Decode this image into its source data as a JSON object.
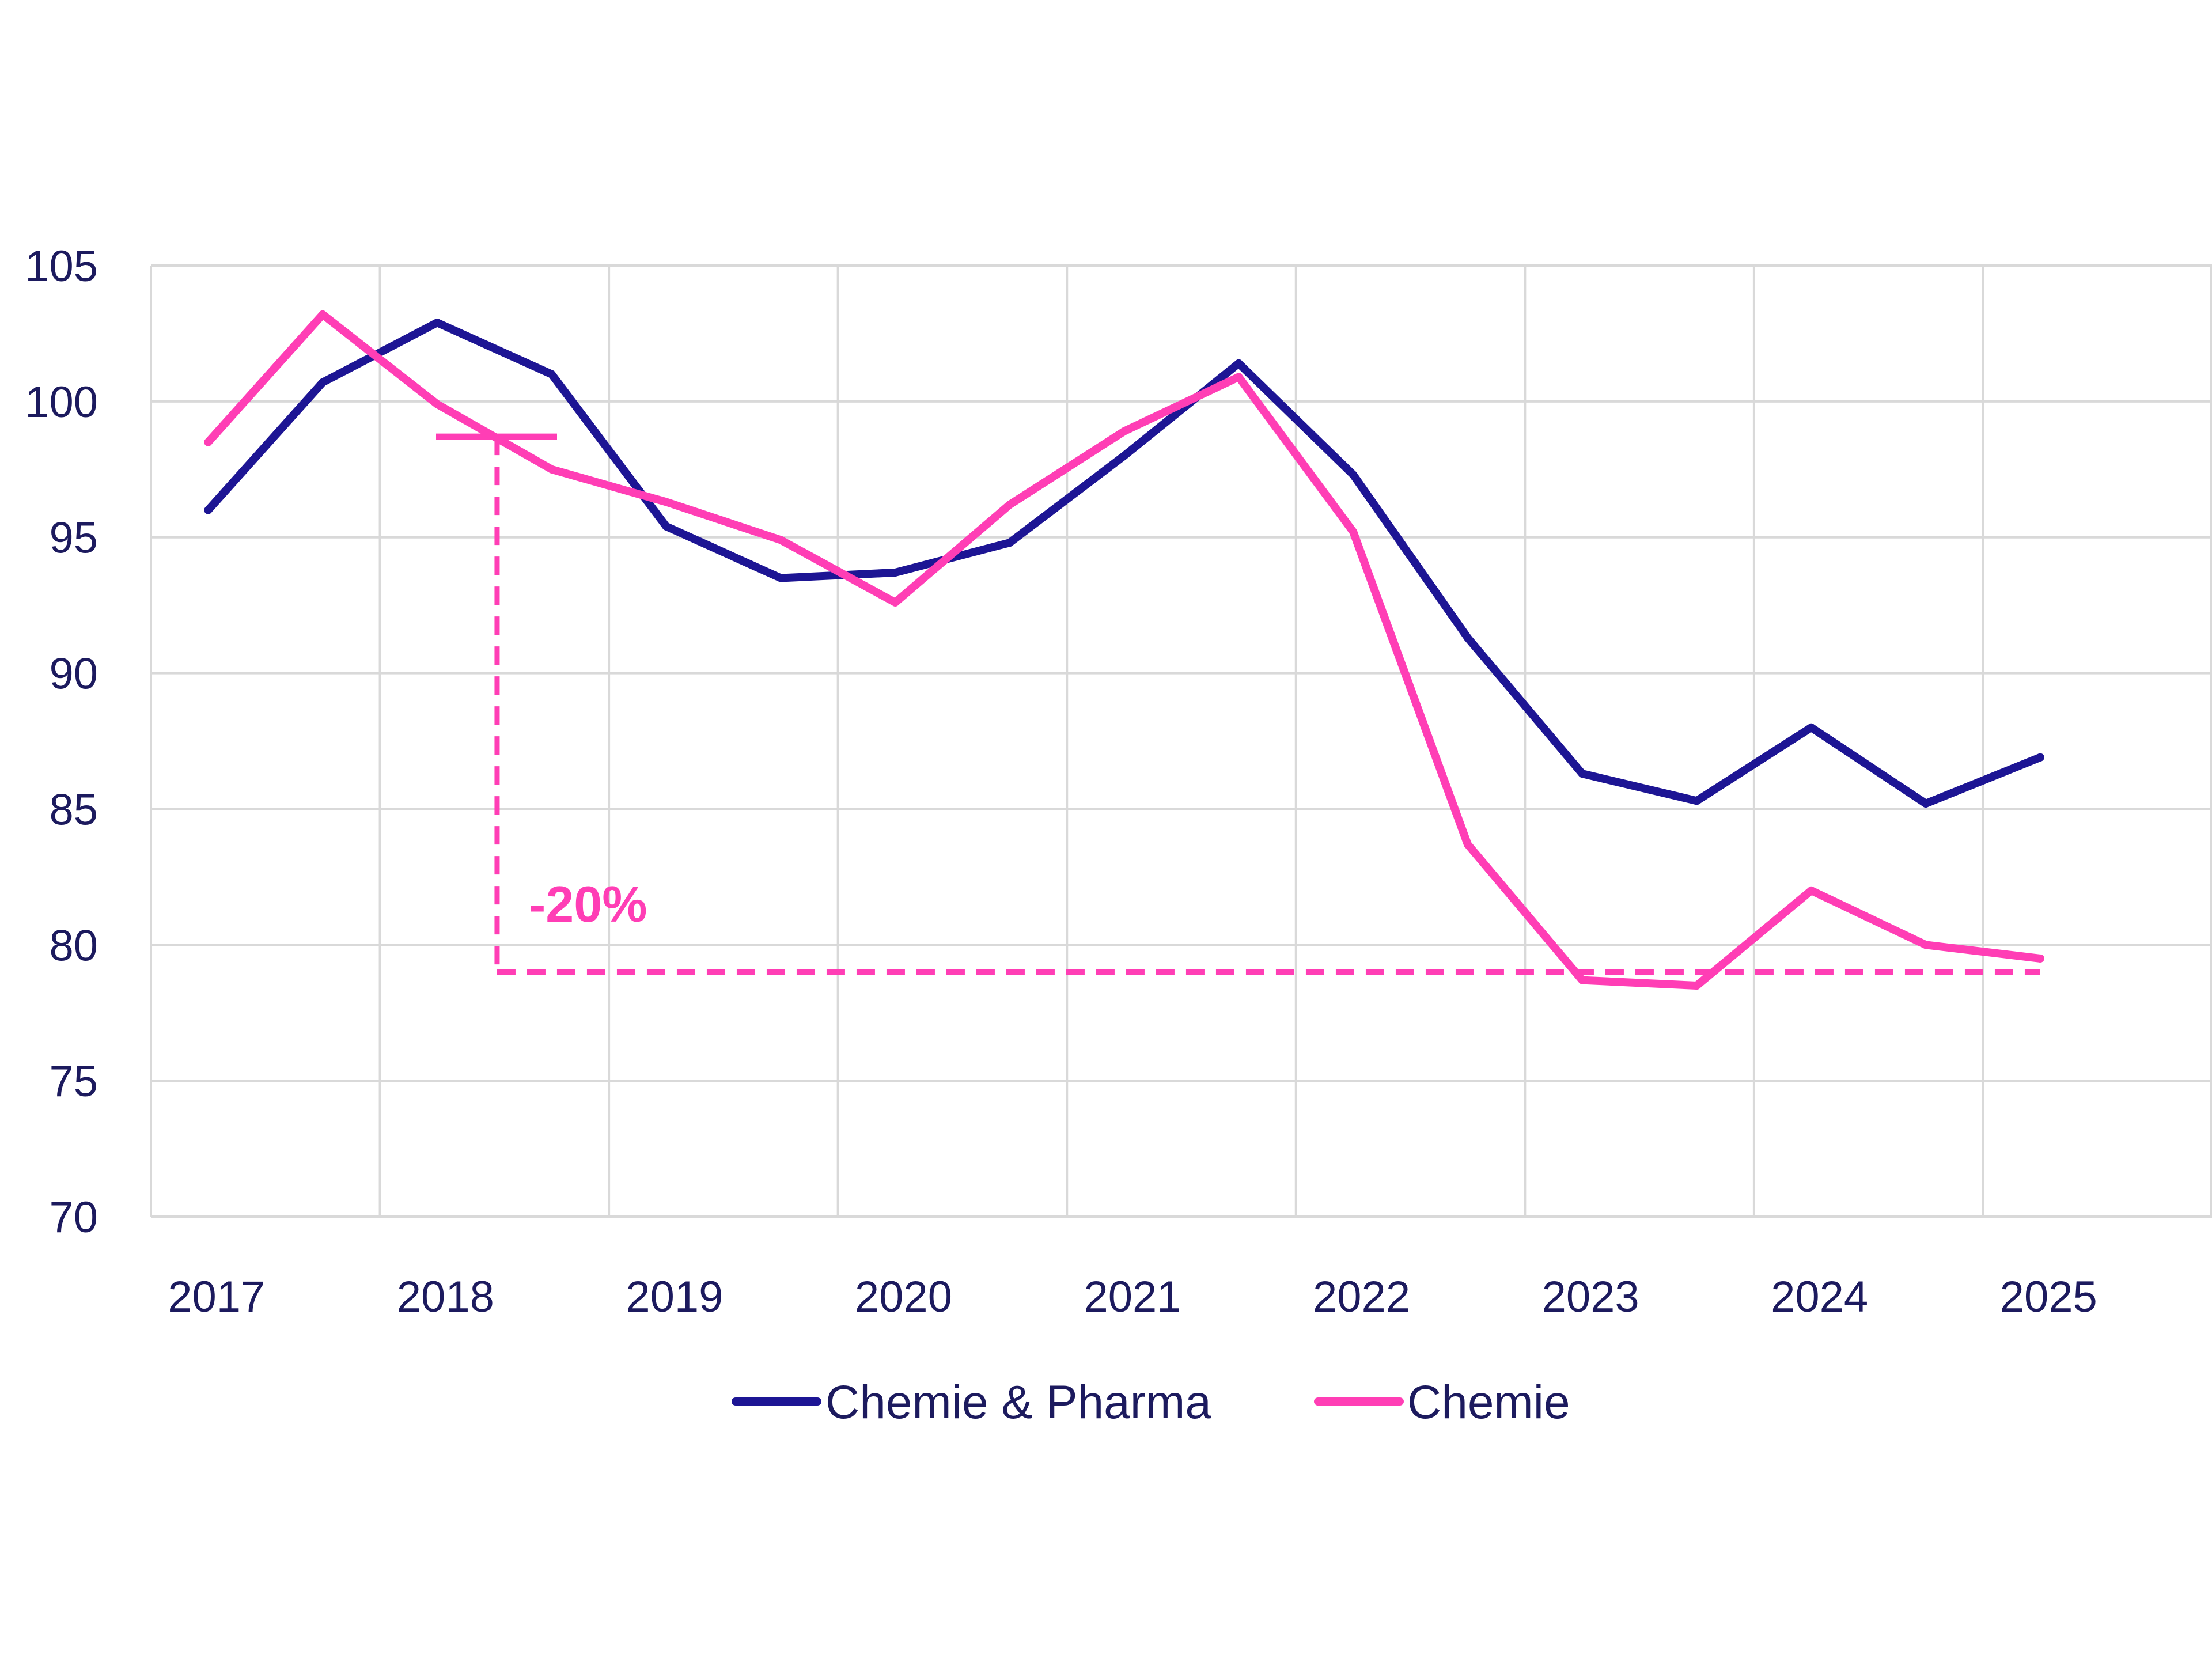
{
  "chart_data": {
    "type": "line",
    "title": "",
    "xlabel": "",
    "ylabel": "",
    "ylim": [
      70,
      105
    ],
    "yticks": [
      "70",
      "75",
      "80",
      "85",
      "90",
      "95",
      "100",
      "105"
    ],
    "xticks": [
      "2017",
      "2018",
      "2019",
      "2020",
      "2021",
      "2022",
      "2023",
      "2024",
      "2025"
    ],
    "x": [
      2016.75,
      2017.25,
      2017.75,
      2018.25,
      2018.75,
      2019.25,
      2019.75,
      2020.25,
      2020.75,
      2021.25,
      2021.75,
      2022.25,
      2022.75,
      2023.25,
      2023.75,
      2024.25,
      2024.75
    ],
    "grid": true,
    "legend_position": "bottom",
    "series": [
      {
        "name": "Chemie & Pharma",
        "color": "#1d1594",
        "values": [
          96.0,
          100.7,
          102.9,
          101.0,
          95.4,
          93.5,
          93.7,
          94.8,
          98.0,
          101.4,
          97.3,
          91.3,
          86.3,
          85.3,
          88.0,
          85.2,
          86.9
        ]
      },
      {
        "name": "Chemie",
        "color": "#ff3eb5",
        "values": [
          98.5,
          103.2,
          99.9,
          97.5,
          96.3,
          94.9,
          92.6,
          96.2,
          98.9,
          100.9,
          95.2,
          83.7,
          78.7,
          78.5,
          82.0,
          80.0,
          79.5
        ]
      }
    ],
    "annotations": [
      {
        "label": "-20%",
        "color": "#ff3eb5",
        "from_x": 2017.75,
        "to_x": 2024.75,
        "from_y": 98.7,
        "to_y": 79.0
      }
    ]
  }
}
